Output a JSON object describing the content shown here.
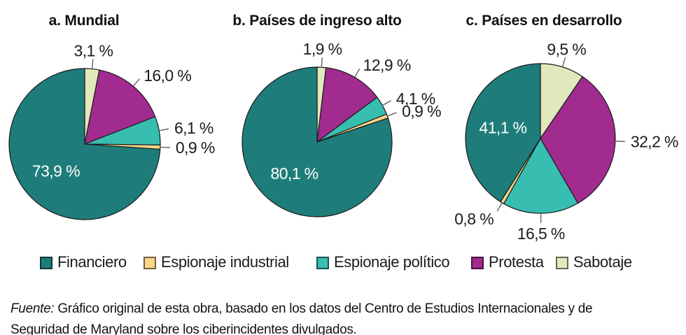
{
  "legend": {
    "items": [
      {
        "label": "Financiero",
        "color": "#1E7D7A"
      },
      {
        "label": "Espionaje industrial",
        "color": "#FBD687"
      },
      {
        "label": "Espionaje político",
        "color": "#38BDB1"
      },
      {
        "label": "Protesta",
        "color": "#A12B8F"
      },
      {
        "label": "Sabotaje",
        "color": "#E1E9BC"
      }
    ]
  },
  "source_note": {
    "prefix": "Fuente:",
    "text": "Gráfico original de esta obra, basado en los datos del Centro de Estudios Internacionales y de Seguridad de Maryland sobre los ciberincidentes divulgados."
  },
  "chart_data": [
    {
      "type": "pie",
      "title": "a. Mundial",
      "unit": "%",
      "clockwise_from_top": true,
      "slices": [
        {
          "name": "Sabotaje",
          "value": 3.1,
          "label": "3,1 %"
        },
        {
          "name": "Protesta",
          "value": 16.0,
          "label": "16,0 %"
        },
        {
          "name": "Espionaje político",
          "value": 6.1,
          "label": "6,1 %"
        },
        {
          "name": "Espionaje industrial",
          "value": 0.9,
          "label": "0,9 %"
        },
        {
          "name": "Financiero",
          "value": 73.9,
          "label": "73,9 %",
          "label_inside": true
        }
      ]
    },
    {
      "type": "pie",
      "title": "b. Países de ingreso alto",
      "unit": "%",
      "clockwise_from_top": true,
      "slices": [
        {
          "name": "Sabotaje",
          "value": 1.9,
          "label": "1,9 %"
        },
        {
          "name": "Protesta",
          "value": 12.9,
          "label": "12,9 %"
        },
        {
          "name": "Espionaje político",
          "value": 4.1,
          "label": "4,1 %"
        },
        {
          "name": "Espionaje industrial",
          "value": 0.9,
          "label": "0,9 %"
        },
        {
          "name": "Financiero",
          "value": 80.1,
          "label": "80,1 %",
          "label_inside": true
        }
      ]
    },
    {
      "type": "pie",
      "title": "c. Países en desarrollo",
      "unit": "%",
      "clockwise_from_top": true,
      "slices": [
        {
          "name": "Sabotaje",
          "value": 9.5,
          "label": "9,5 %"
        },
        {
          "name": "Protesta",
          "value": 32.2,
          "label": "32,2 %"
        },
        {
          "name": "Espionaje político",
          "value": 16.5,
          "label": "16,5 %"
        },
        {
          "name": "Espionaje industrial",
          "value": 0.8,
          "label": "0,8 %"
        },
        {
          "name": "Financiero",
          "value": 41.1,
          "label": "41,1 %",
          "label_inside": true
        }
      ]
    }
  ]
}
